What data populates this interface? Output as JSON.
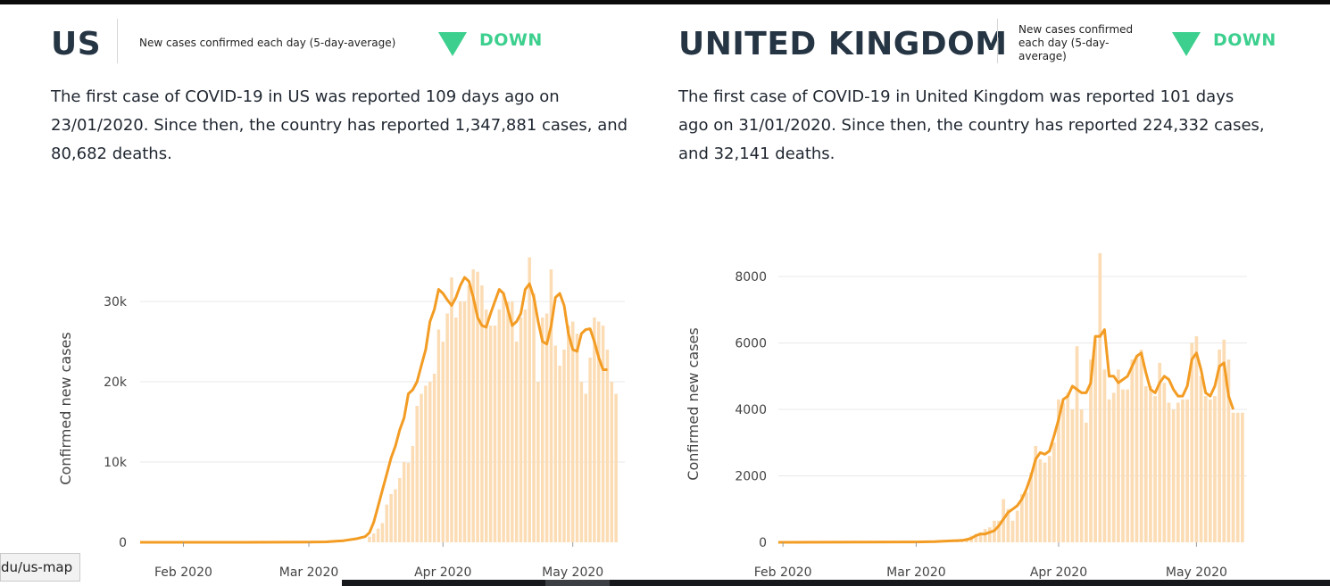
{
  "colors": {
    "bar": "#fbdcb4",
    "line": "#f39c24",
    "grid": "#e8e8e8",
    "trend": "#3ccf8e"
  },
  "panels": [
    {
      "id": "us",
      "country": "US",
      "caption": "New cases confirmed each day (5-day-average)",
      "trend": "DOWN",
      "summary": "The first case of COVID-19 in US was reported 109 days ago on 23/01/2020. Since then, the country has reported 1,347,881 cases, and 80,682 deaths."
    },
    {
      "id": "uk",
      "country": "UNITED KINGDOM",
      "caption": "New cases confirmed each day (5-day-average)",
      "trend": "DOWN",
      "summary": "The first case of COVID-19 in United Kingdom was reported 101 days ago on 31/01/2020. Since then, the country has reported 224,332 cases, and 32,141 deaths."
    }
  ],
  "chart_data": [
    {
      "type": "bar",
      "ylabel": "Confirmed new cases",
      "ylim": [
        0,
        36000
      ],
      "yticks": [
        0,
        10000,
        20000,
        30000
      ],
      "yticklabels": [
        "0",
        "10k",
        "20k",
        "30k"
      ],
      "xticks": [
        "Feb 2020",
        "Mar 2020",
        "Apr 2020",
        "May 2020"
      ],
      "grid": true,
      "series": [
        {
          "kind": "bar",
          "x": [
            "03-15",
            "03-16",
            "03-17",
            "03-18",
            "03-19",
            "03-20",
            "03-21",
            "03-22",
            "03-23",
            "03-24",
            "03-25",
            "03-26",
            "03-27",
            "03-28",
            "03-29",
            "03-30",
            "03-31",
            "04-01",
            "04-02",
            "04-03",
            "04-04",
            "04-05",
            "04-06",
            "04-07",
            "04-08",
            "04-09",
            "04-10",
            "04-11",
            "04-12",
            "04-13",
            "04-14",
            "04-15",
            "04-16",
            "04-17",
            "04-18",
            "04-19",
            "04-20",
            "04-21",
            "04-22",
            "04-23",
            "04-24",
            "04-25",
            "04-26",
            "04-27",
            "04-28",
            "04-29",
            "04-30",
            "05-01",
            "05-02",
            "05-03",
            "05-04",
            "05-05",
            "05-06",
            "05-07",
            "05-08",
            "05-09",
            "05-10",
            "05-11"
          ],
          "values": [
            700,
            1100,
            1700,
            2400,
            4700,
            6000,
            6600,
            8000,
            10000,
            9900,
            12000,
            17000,
            18500,
            19500,
            20000,
            21000,
            26500,
            25000,
            28500,
            33000,
            28000,
            30000,
            30000,
            32000,
            34000,
            33700,
            32000,
            29000,
            27000,
            27000,
            29000,
            31000,
            30000,
            30000,
            25000,
            28000,
            29000,
            35500,
            31000,
            20000,
            28000,
            28500,
            34000,
            24500,
            22000,
            24000,
            27000,
            27500,
            26000,
            20000,
            18500,
            23000,
            28000,
            27500,
            27000,
            24000,
            20000,
            18500
          ]
        },
        {
          "kind": "line",
          "x": [
            "01-22",
            "02-01",
            "02-15",
            "03-01",
            "03-05",
            "03-09",
            "03-12",
            "03-14",
            "03-15",
            "03-16",
            "03-17",
            "03-18",
            "03-19",
            "03-20",
            "03-21",
            "03-22",
            "03-23",
            "03-24",
            "03-25",
            "03-26",
            "03-27",
            "03-28",
            "03-29",
            "03-30",
            "03-31",
            "04-01",
            "04-02",
            "04-03",
            "04-04",
            "04-05",
            "04-06",
            "04-07",
            "04-08",
            "04-09",
            "04-10",
            "04-11",
            "04-12",
            "04-13",
            "04-14",
            "04-15",
            "04-16",
            "04-17",
            "04-18",
            "04-19",
            "04-20",
            "04-21",
            "04-22",
            "04-23",
            "04-24",
            "04-25",
            "04-26",
            "04-27",
            "04-28",
            "04-29",
            "04-30",
            "05-01",
            "05-02",
            "05-03",
            "05-04",
            "05-05",
            "05-06",
            "05-07",
            "05-08",
            "05-09"
          ],
          "values": [
            0,
            0,
            5,
            20,
            60,
            200,
            450,
            700,
            1200,
            2500,
            4500,
            6500,
            8500,
            10500,
            12000,
            14000,
            15500,
            18500,
            19000,
            20000,
            22000,
            24000,
            27500,
            29000,
            31500,
            31000,
            30200,
            29500,
            30500,
            32000,
            33000,
            32500,
            30500,
            28000,
            27000,
            26800,
            28500,
            30000,
            31500,
            31000,
            29000,
            27000,
            27500,
            28500,
            31500,
            32200,
            30500,
            27500,
            25000,
            24700,
            27000,
            30500,
            31000,
            29500,
            26000,
            24000,
            23800,
            26000,
            26500,
            26600,
            25000,
            23000,
            21500,
            21500
          ]
        }
      ]
    },
    {
      "type": "bar",
      "ylabel": "Confirmed new cases",
      "ylim": [
        0,
        9000
      ],
      "yticks": [
        0,
        2000,
        4000,
        6000,
        8000
      ],
      "yticklabels": [
        "0",
        "2000",
        "4000",
        "6000",
        "8000"
      ],
      "xticks": [
        "Feb 2020",
        "Mar 2020",
        "Apr 2020",
        "May 2020"
      ],
      "grid": true,
      "series": [
        {
          "kind": "bar",
          "x": [
            "03-08",
            "03-09",
            "03-10",
            "03-11",
            "03-12",
            "03-13",
            "03-14",
            "03-15",
            "03-16",
            "03-17",
            "03-18",
            "03-19",
            "03-20",
            "03-21",
            "03-22",
            "03-23",
            "03-24",
            "03-25",
            "03-26",
            "03-27",
            "03-28",
            "03-29",
            "03-30",
            "03-31",
            "04-01",
            "04-02",
            "04-03",
            "04-04",
            "04-05",
            "04-06",
            "04-07",
            "04-08",
            "04-09",
            "04-10",
            "04-11",
            "04-12",
            "04-13",
            "04-14",
            "04-15",
            "04-16",
            "04-17",
            "04-18",
            "04-19",
            "04-20",
            "04-21",
            "04-22",
            "04-23",
            "04-24",
            "04-25",
            "04-26",
            "04-27",
            "04-28",
            "04-29",
            "04-30",
            "05-01",
            "05-02",
            "05-03",
            "05-04",
            "05-05",
            "05-06",
            "05-07",
            "05-08",
            "05-09",
            "05-10",
            "05-11"
          ],
          "values": [
            65,
            50,
            60,
            80,
            130,
            200,
            250,
            300,
            400,
            450,
            650,
            650,
            1300,
            1000,
            650,
            950,
            1450,
            1500,
            2100,
            2900,
            2500,
            2400,
            2600,
            3000,
            4300,
            4200,
            4500,
            4000,
            5900,
            4000,
            3600,
            5500,
            6100,
            8700,
            5200,
            4300,
            4500,
            5200,
            4600,
            4600,
            5500,
            5600,
            5800,
            4700,
            4700,
            4400,
            5400,
            4800,
            4200,
            4000,
            4200,
            4300,
            4300,
            6000,
            6200,
            5000,
            4400,
            4300,
            4400,
            5800,
            6100,
            5500,
            3900,
            3900,
            3900
          ]
        },
        {
          "kind": "line",
          "x": [
            "01-31",
            "02-10",
            "02-20",
            "03-01",
            "03-05",
            "03-08",
            "03-09",
            "03-10",
            "03-11",
            "03-12",
            "03-13",
            "03-14",
            "03-15",
            "03-16",
            "03-17",
            "03-18",
            "03-19",
            "03-20",
            "03-21",
            "03-22",
            "03-23",
            "03-24",
            "03-25",
            "03-26",
            "03-27",
            "03-28",
            "03-29",
            "03-30",
            "03-31",
            "04-01",
            "04-02",
            "04-03",
            "04-04",
            "04-05",
            "04-06",
            "04-07",
            "04-08",
            "04-09",
            "04-10",
            "04-11",
            "04-12",
            "04-13",
            "04-14",
            "04-15",
            "04-16",
            "04-17",
            "04-18",
            "04-19",
            "04-20",
            "04-21",
            "04-22",
            "04-23",
            "04-24",
            "04-25",
            "04-26",
            "04-27",
            "04-28",
            "04-29",
            "04-30",
            "05-01",
            "05-02",
            "05-03",
            "05-04",
            "05-05",
            "05-06",
            "05-07",
            "05-08",
            "05-09"
          ],
          "values": [
            0,
            2,
            5,
            10,
            20,
            40,
            45,
            50,
            60,
            80,
            120,
            200,
            250,
            250,
            300,
            350,
            500,
            700,
            900,
            1000,
            1100,
            1300,
            1600,
            2000,
            2500,
            2700,
            2650,
            2750,
            3200,
            3700,
            4300,
            4400,
            4700,
            4600,
            4500,
            4500,
            4800,
            6200,
            6200,
            6400,
            5000,
            5000,
            4800,
            4900,
            5000,
            5300,
            5600,
            5700,
            5100,
            4600,
            4500,
            4800,
            5000,
            4900,
            4600,
            4400,
            4400,
            4700,
            5500,
            5700,
            5200,
            4500,
            4400,
            4700,
            5300,
            5400,
            4400,
            4000
          ]
        }
      ]
    }
  ],
  "status_url": "du/us-map"
}
